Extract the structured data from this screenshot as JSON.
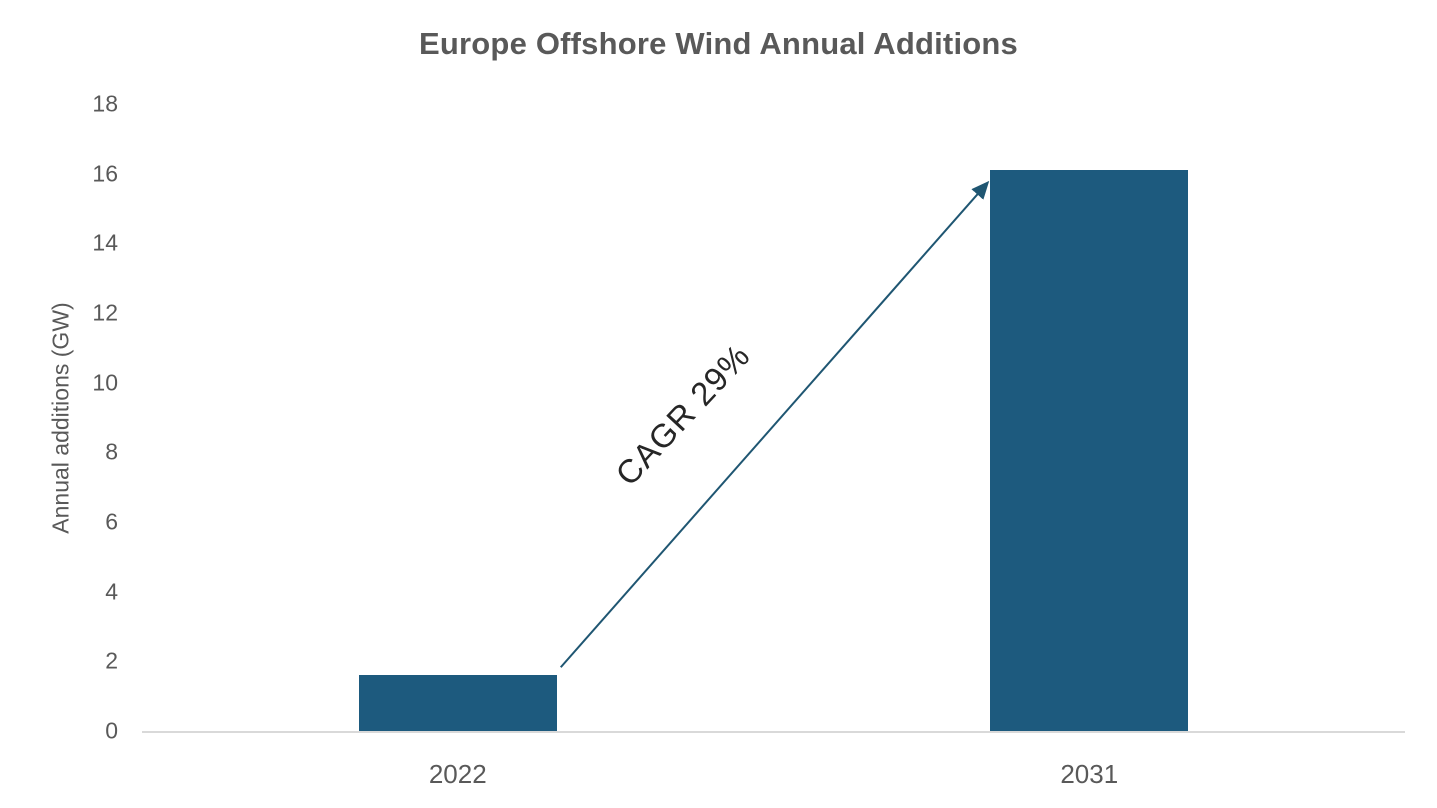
{
  "chart_data": {
    "type": "bar",
    "title": "Europe Offshore Wind Annual Additions",
    "ylabel": "Annual additions (GW)",
    "xlabel": "",
    "categories": [
      "2022",
      "2031"
    ],
    "values": [
      1.6,
      16.1
    ],
    "ylim": [
      0,
      18
    ],
    "yticks": [
      0,
      2,
      4,
      6,
      8,
      10,
      12,
      14,
      16,
      18
    ],
    "grid": false,
    "legend": null,
    "annotation": {
      "label": "CAGR 29%"
    },
    "colors": {
      "bar": "#1D5A7E",
      "arrow": "#1F5672",
      "axis_line": "#D9D9D9",
      "axis_text": "#595959",
      "title_text": "#595959",
      "annotation_text": "#262626",
      "background": "#FFFFFF"
    }
  }
}
